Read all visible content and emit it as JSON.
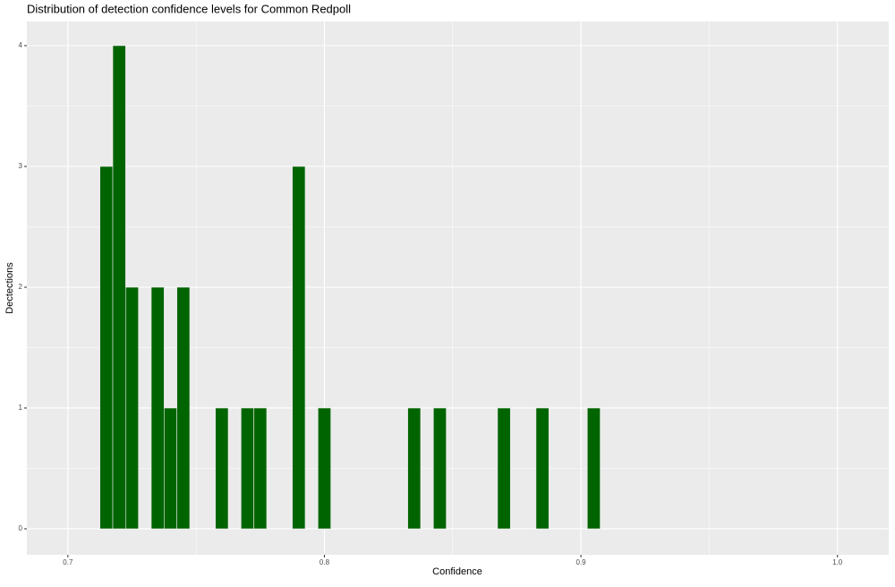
{
  "chart_data": {
    "type": "histogram",
    "title": "Distribution of detection confidence levels for Common Redpoll",
    "x_label": "Confidence",
    "y_label": "Dectections",
    "bins": [
      0.7125,
      0.7175,
      0.7225,
      0.7275,
      0.7325,
      0.7375,
      0.7425,
      0.7475,
      0.7525,
      0.7575,
      0.7625,
      0.7675,
      0.7725,
      0.7775,
      0.7825,
      0.7875,
      0.7925,
      0.7975,
      0.8025,
      0.8075,
      0.8125,
      0.8175,
      0.8225,
      0.8275,
      0.8325,
      0.8375,
      0.8425,
      0.8475,
      0.8525,
      0.8575,
      0.8625,
      0.8675,
      0.8725,
      0.8775,
      0.8825,
      0.8875,
      0.8925,
      0.8975,
      0.9025,
      0.9075
    ],
    "values": [
      3,
      4,
      2,
      0,
      2,
      1,
      2,
      0,
      0,
      1,
      0,
      1,
      1,
      0,
      0,
      3,
      0,
      1,
      0,
      0,
      0,
      0,
      0,
      0,
      1,
      0,
      1,
      0,
      0,
      0,
      0,
      1,
      0,
      0,
      1,
      0,
      0,
      0,
      1
    ],
    "color": "#006400",
    "xlim": [
      0.684,
      1.02
    ],
    "ylim": [
      -0.215,
      4.2
    ],
    "xticks": [
      0.7,
      0.8,
      0.9,
      {
        "value": 1,
        "label": "1.0"
      }
    ],
    "yticks": [
      0,
      1,
      2,
      3,
      4
    ],
    "x_minor_ticks": [
      0.75,
      0.85,
      0.95
    ],
    "y_minor_ticks": [
      0.5,
      1.5,
      2.5,
      3.5
    ],
    "grid": true
  }
}
